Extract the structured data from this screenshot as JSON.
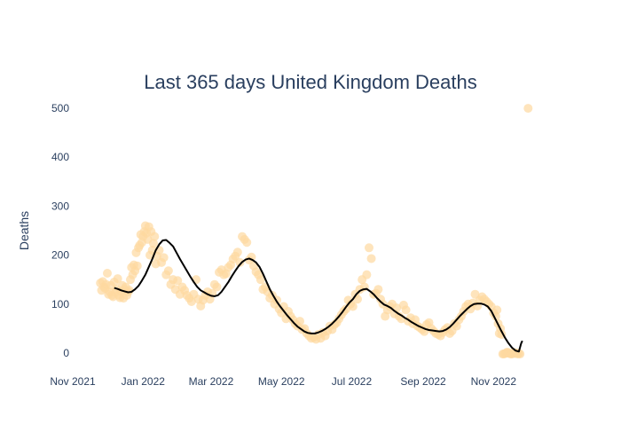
{
  "chart_data": {
    "type": "scatter",
    "title": "Last 365 days United Kingdom Deaths",
    "xlabel": "",
    "ylabel": "Deaths",
    "x_range": [
      "2021-11-01",
      "2022-12-20"
    ],
    "ylim": [
      -40,
      540
    ],
    "grid": false,
    "legend": "none",
    "x_ticks": [
      {
        "date": "2021-11-01",
        "label": "Nov 2021"
      },
      {
        "date": "2022-01-01",
        "label": "Jan 2022"
      },
      {
        "date": "2022-03-01",
        "label": "Mar 2022"
      },
      {
        "date": "2022-05-01",
        "label": "May 2022"
      },
      {
        "date": "2022-07-01",
        "label": "Jul 2022"
      },
      {
        "date": "2022-09-01",
        "label": "Sep 2022"
      },
      {
        "date": "2022-11-01",
        "label": "Nov 2022"
      }
    ],
    "y_ticks": [
      0,
      100,
      200,
      300,
      400,
      500
    ],
    "colors": {
      "points": "#fdd9a0",
      "line": "#000000",
      "text": "#2a3f5f"
    },
    "series": [
      {
        "kind": "points",
        "x": [
          "2021-11-25",
          "2021-11-26",
          "2021-11-27",
          "2021-11-28",
          "2021-11-29",
          "2021-11-30",
          "2021-12-01",
          "2021-12-02",
          "2021-12-03",
          "2021-12-04",
          "2021-12-05",
          "2021-12-06",
          "2021-12-07",
          "2021-12-08",
          "2021-12-09",
          "2021-12-10",
          "2021-12-11",
          "2021-12-12",
          "2021-12-13",
          "2021-12-14",
          "2021-12-15",
          "2021-12-16",
          "2021-12-17",
          "2021-12-18",
          "2021-12-19",
          "2021-12-20",
          "2021-12-21",
          "2021-12-22",
          "2021-12-23",
          "2021-12-24",
          "2021-12-25",
          "2021-12-26",
          "2021-12-27",
          "2021-12-28",
          "2021-12-29",
          "2021-12-30",
          "2021-12-31",
          "2022-01-01",
          "2022-01-02",
          "2022-01-03",
          "2022-01-04",
          "2022-01-05",
          "2022-01-06",
          "2022-01-07",
          "2022-01-08",
          "2022-01-09",
          "2022-01-10",
          "2022-01-11",
          "2022-01-12",
          "2022-01-13",
          "2022-01-15",
          "2022-01-17",
          "2022-01-19",
          "2022-01-21",
          "2022-01-23",
          "2022-01-25",
          "2022-01-27",
          "2022-01-29",
          "2022-01-31",
          "2022-02-02",
          "2022-02-04",
          "2022-02-06",
          "2022-02-08",
          "2022-02-10",
          "2022-02-12",
          "2022-02-14",
          "2022-02-16",
          "2022-02-18",
          "2022-02-20",
          "2022-02-22",
          "2022-02-24",
          "2022-02-26",
          "2022-02-28",
          "2022-03-02",
          "2022-03-04",
          "2022-03-06",
          "2022-03-08",
          "2022-03-10",
          "2022-03-12",
          "2022-03-14",
          "2022-03-16",
          "2022-03-18",
          "2022-03-20",
          "2022-03-22",
          "2022-03-24",
          "2022-03-26",
          "2022-03-28",
          "2022-03-30",
          "2022-04-01",
          "2022-04-03",
          "2022-04-05",
          "2022-04-07",
          "2022-04-09",
          "2022-04-11",
          "2022-04-13",
          "2022-04-15",
          "2022-04-17",
          "2022-04-19",
          "2022-04-21",
          "2022-04-23",
          "2022-04-25",
          "2022-04-27",
          "2022-04-29",
          "2022-05-01",
          "2022-05-03",
          "2022-05-05",
          "2022-05-07",
          "2022-05-09",
          "2022-05-11",
          "2022-05-13",
          "2022-05-15",
          "2022-05-17",
          "2022-05-19",
          "2022-05-21",
          "2022-05-23",
          "2022-05-25",
          "2022-05-27",
          "2022-05-29",
          "2022-05-31",
          "2022-06-02",
          "2022-06-04",
          "2022-06-06",
          "2022-06-08",
          "2022-06-10",
          "2022-06-12",
          "2022-06-14",
          "2022-06-16",
          "2022-06-18",
          "2022-06-20",
          "2022-06-22",
          "2022-06-24",
          "2022-06-26",
          "2022-06-28",
          "2022-06-30",
          "2022-07-02",
          "2022-07-04",
          "2022-07-06",
          "2022-07-08",
          "2022-07-10",
          "2022-07-12",
          "2022-07-14",
          "2022-07-16",
          "2022-07-18",
          "2022-07-20",
          "2022-07-22",
          "2022-07-24",
          "2022-07-26",
          "2022-07-28",
          "2022-07-30",
          "2022-08-01",
          "2022-08-03",
          "2022-08-05",
          "2022-08-07",
          "2022-08-09",
          "2022-08-11",
          "2022-08-13",
          "2022-08-15",
          "2022-08-17",
          "2022-08-19",
          "2022-08-21",
          "2022-08-23",
          "2022-08-25",
          "2022-08-27",
          "2022-08-29",
          "2022-08-31",
          "2022-09-02",
          "2022-09-04",
          "2022-09-06",
          "2022-09-08",
          "2022-09-10",
          "2022-09-12",
          "2022-09-14",
          "2022-09-16",
          "2022-09-18",
          "2022-09-20",
          "2022-09-22",
          "2022-09-24",
          "2022-09-26",
          "2022-09-28",
          "2022-09-30",
          "2022-10-02",
          "2022-10-04",
          "2022-10-06",
          "2022-10-08",
          "2022-10-10",
          "2022-10-12",
          "2022-10-14",
          "2022-10-16",
          "2022-10-18",
          "2022-10-20",
          "2022-10-22",
          "2022-10-24",
          "2022-10-26",
          "2022-10-28",
          "2022-10-30",
          "2022-11-01",
          "2022-11-03",
          "2022-11-04",
          "2022-11-05",
          "2022-11-06",
          "2022-11-07",
          "2022-11-08",
          "2022-11-09",
          "2022-11-10",
          "2022-11-11",
          "2022-11-12",
          "2022-11-13",
          "2022-11-14",
          "2022-11-15",
          "2022-11-16",
          "2022-11-17",
          "2022-11-18",
          "2022-11-19",
          "2022-11-20",
          "2022-11-21",
          "2022-11-22",
          "2022-11-23",
          "2022-11-24"
        ],
        "y": [
          143,
          128,
          146,
          135,
          132,
          140,
          163,
          120,
          125,
          138,
          118,
          115,
          145,
          124,
          130,
          152,
          118,
          113,
          126,
          138,
          112,
          130,
          135,
          118,
          125,
          128,
          150,
          175,
          160,
          180,
          168,
          205,
          178,
          215,
          220,
          242,
          226,
          238,
          248,
          260,
          245,
          232,
          258,
          200,
          248,
          210,
          224,
          238,
          182,
          198,
          210,
          185,
          195,
          160,
          168,
          140,
          150,
          130,
          148,
          120,
          135,
          128,
          118,
          112,
          105,
          120,
          150,
          110,
          96,
          108,
          118,
          125,
          110,
          122,
          140,
          135,
          165,
          170,
          160,
          162,
          175,
          180,
          192,
          198,
          206,
          185,
          238,
          232,
          226,
          190,
          196,
          178,
          166,
          160,
          150,
          130,
          135,
          125,
          112,
          118,
          100,
          108,
          90,
          82,
          95,
          70,
          85,
          75,
          68,
          60,
          55,
          65,
          48,
          50,
          40,
          35,
          30,
          32,
          28,
          38,
          30,
          42,
          35,
          45,
          55,
          48,
          58,
          62,
          70,
          78,
          85,
          90,
          108,
          100,
          95,
          120,
          110,
          130,
          150,
          135,
          160,
          215,
          193,
          120,
          122,
          130,
          110,
          100,
          75,
          88,
          95,
          100,
          80,
          92,
          75,
          70,
          98,
          88,
          65,
          72,
          60,
          68,
          55,
          52,
          48,
          44,
          58,
          62,
          50,
          45,
          40,
          38,
          35,
          42,
          48,
          52,
          40,
          45,
          60,
          55,
          68,
          75,
          85,
          95,
          100,
          90,
          102,
          120,
          96,
          108,
          115,
          110,
          105,
          100,
          95,
          82,
          75,
          88,
          60,
          40,
          50,
          38,
          -2,
          -2,
          -1,
          0,
          2,
          0,
          -1,
          -2,
          -2,
          0,
          1,
          -1,
          0,
          -2,
          -1,
          -2
        ]
      },
      {
        "kind": "points",
        "x": [
          "2022-12-01"
        ],
        "y": [
          500
        ]
      },
      {
        "kind": "line",
        "x": [
          "2021-12-07",
          "2021-12-10",
          "2021-12-13",
          "2021-12-16",
          "2021-12-19",
          "2021-12-22",
          "2021-12-25",
          "2021-12-28",
          "2021-12-31",
          "2022-01-03",
          "2022-01-06",
          "2022-01-09",
          "2022-01-12",
          "2022-01-15",
          "2022-01-18",
          "2022-01-21",
          "2022-01-24",
          "2022-01-27",
          "2022-01-30",
          "2022-02-02",
          "2022-02-05",
          "2022-02-08",
          "2022-02-11",
          "2022-02-14",
          "2022-02-17",
          "2022-02-20",
          "2022-02-23",
          "2022-02-26",
          "2022-03-01",
          "2022-03-04",
          "2022-03-07",
          "2022-03-10",
          "2022-03-13",
          "2022-03-16",
          "2022-03-19",
          "2022-03-22",
          "2022-03-25",
          "2022-03-28",
          "2022-03-31",
          "2022-04-03",
          "2022-04-06",
          "2022-04-09",
          "2022-04-12",
          "2022-04-15",
          "2022-04-18",
          "2022-04-21",
          "2022-04-24",
          "2022-04-27",
          "2022-04-30",
          "2022-05-03",
          "2022-05-06",
          "2022-05-09",
          "2022-05-12",
          "2022-05-15",
          "2022-05-18",
          "2022-05-21",
          "2022-05-24",
          "2022-05-27",
          "2022-05-30",
          "2022-06-02",
          "2022-06-05",
          "2022-06-08",
          "2022-06-11",
          "2022-06-14",
          "2022-06-17",
          "2022-06-20",
          "2022-06-23",
          "2022-06-26",
          "2022-06-29",
          "2022-07-02",
          "2022-07-05",
          "2022-07-08",
          "2022-07-11",
          "2022-07-14",
          "2022-07-17",
          "2022-07-20",
          "2022-07-23",
          "2022-07-26",
          "2022-07-29",
          "2022-08-01",
          "2022-08-04",
          "2022-08-07",
          "2022-08-10",
          "2022-08-13",
          "2022-08-16",
          "2022-08-19",
          "2022-08-22",
          "2022-08-25",
          "2022-08-28",
          "2022-08-31",
          "2022-09-03",
          "2022-09-06",
          "2022-09-09",
          "2022-09-12",
          "2022-09-15",
          "2022-09-18",
          "2022-09-21",
          "2022-09-24",
          "2022-09-27",
          "2022-09-30",
          "2022-10-03",
          "2022-10-06",
          "2022-10-09",
          "2022-10-12",
          "2022-10-15",
          "2022-10-18",
          "2022-10-21",
          "2022-10-24",
          "2022-10-27",
          "2022-10-30",
          "2022-11-02",
          "2022-11-05",
          "2022-11-08",
          "2022-11-11",
          "2022-11-14",
          "2022-11-17",
          "2022-11-20",
          "2022-11-23",
          "2022-11-25",
          "2022-11-26"
        ],
        "y": [
          133,
          131,
          128,
          126,
          124,
          125,
          130,
          137,
          148,
          160,
          176,
          192,
          210,
          222,
          230,
          231,
          225,
          218,
          205,
          192,
          180,
          168,
          156,
          145,
          135,
          128,
          124,
          120,
          117,
          116,
          118,
          125,
          135,
          145,
          157,
          168,
          178,
          186,
          191,
          193,
          190,
          185,
          176,
          162,
          146,
          130,
          117,
          105,
          95,
          86,
          77,
          69,
          61,
          54,
          49,
          44,
          41,
          40,
          40,
          42,
          45,
          49,
          54,
          60,
          67,
          75,
          84,
          94,
          103,
          110,
          120,
          127,
          130,
          131,
          126,
          120,
          112,
          105,
          99,
          96,
          92,
          86,
          81,
          77,
          72,
          68,
          63,
          59,
          55,
          52,
          49,
          47,
          46,
          45,
          44,
          45,
          48,
          53,
          60,
          68,
          76,
          83,
          90,
          96,
          100,
          101,
          101,
          99,
          95,
          86,
          72,
          58,
          44,
          31,
          20,
          11,
          5,
          3,
          20,
          25
        ]
      }
    ]
  }
}
